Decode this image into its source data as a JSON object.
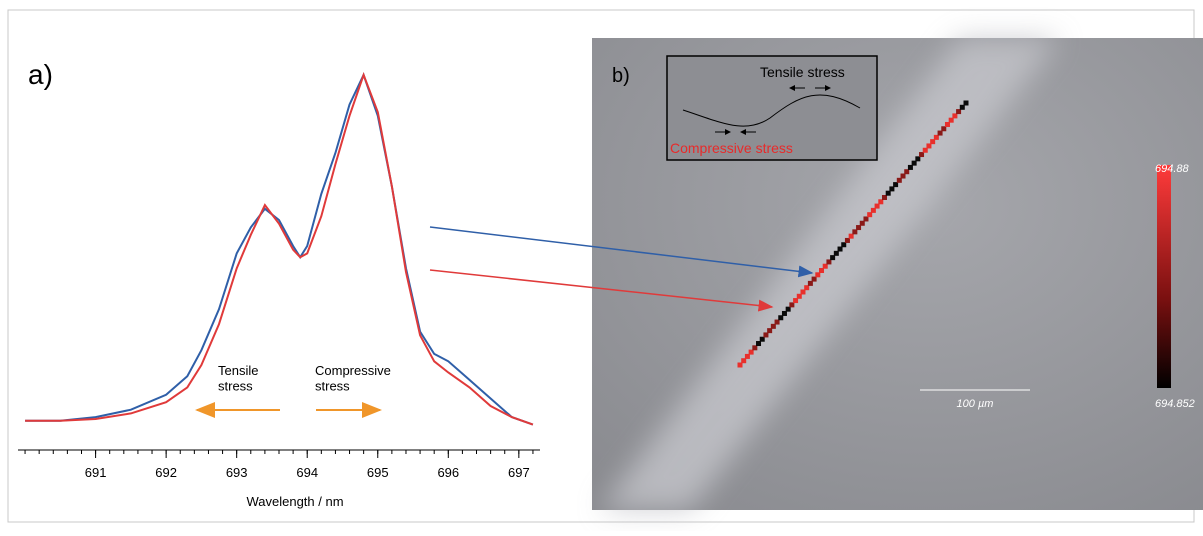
{
  "chart_data": {
    "type": "line",
    "panel_label": "a)",
    "x_label": "Wavelength / nm",
    "x": [
      690.0,
      690.5,
      691.0,
      691.5,
      692.0,
      692.3,
      692.5,
      692.75,
      693.0,
      693.2,
      693.4,
      693.6,
      693.8,
      693.9,
      694.0,
      694.2,
      694.4,
      694.6,
      694.8,
      695.0,
      695.2,
      695.4,
      695.6,
      695.8,
      696.0,
      696.3,
      696.6,
      696.9,
      697.2
    ],
    "series": [
      {
        "color": "#2f5fa8",
        "values": [
          0.03,
          0.03,
          0.04,
          0.06,
          0.1,
          0.15,
          0.22,
          0.33,
          0.48,
          0.55,
          0.6,
          0.57,
          0.5,
          0.47,
          0.5,
          0.64,
          0.75,
          0.88,
          0.96,
          0.85,
          0.66,
          0.44,
          0.27,
          0.21,
          0.19,
          0.14,
          0.09,
          0.04,
          0.02
        ]
      },
      {
        "color": "#e03a3a",
        "values": [
          0.03,
          0.03,
          0.035,
          0.05,
          0.08,
          0.12,
          0.18,
          0.29,
          0.44,
          0.53,
          0.61,
          0.56,
          0.49,
          0.47,
          0.48,
          0.58,
          0.72,
          0.85,
          0.96,
          0.86,
          0.66,
          0.43,
          0.26,
          0.19,
          0.16,
          0.12,
          0.07,
          0.04,
          0.02
        ]
      }
    ],
    "xlim": [
      689.9,
      697.3
    ],
    "ylim": [
      0,
      1
    ],
    "xticks": [
      691,
      692,
      693,
      694,
      695,
      696,
      697
    ],
    "annotations": {
      "tensile": "Tensile\nstress",
      "compressive": "Compressive\nstress"
    }
  },
  "panel_b": {
    "label": "b)",
    "inset_tensile": "Tensile stress",
    "inset_compressive": "Compressive stress",
    "scale_bar": "100 µm",
    "colorbar_max": "694.88",
    "colorbar_min": "694.852"
  }
}
